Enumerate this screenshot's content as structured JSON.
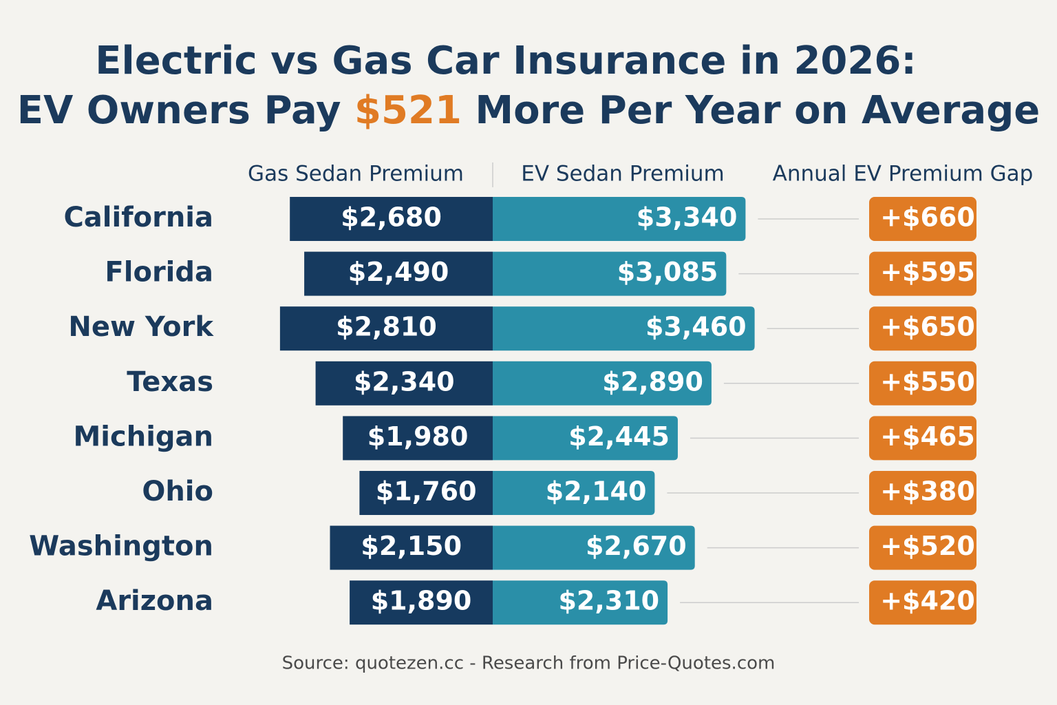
{
  "chart_data": {
    "type": "bar",
    "title": {
      "line1": "Electric vs Gas Car Insurance in 2026:",
      "line2_start": "EV Owners Pay ",
      "highlight": "$521",
      "line2_end": " More Per Year on Average"
    },
    "categories": [
      "California",
      "Florida",
      "New York",
      "Texas",
      "Michigan",
      "Ohio",
      "Washington",
      "Arizona"
    ],
    "series": [
      {
        "name": "Gas Sedan Premium",
        "color": "#163a5f",
        "values": [
          2680,
          2490,
          2810,
          2340,
          1980,
          1760,
          2150,
          1890
        ],
        "value_labels": [
          "$2,680",
          "$2,490",
          "$2,810",
          "$2,340",
          "$1,980",
          "$1,760",
          "$2,150",
          "$1,890"
        ]
      },
      {
        "name": "EV Sedan Premium",
        "color": "#2a8fa8",
        "values": [
          3340,
          3085,
          3460,
          2890,
          2445,
          2140,
          2670,
          2310
        ],
        "value_labels": [
          "$3,340",
          "$3,085",
          "$3,460",
          "$2,890",
          "$2,445",
          "$2,140",
          "$2,670",
          "$2,310"
        ]
      },
      {
        "name": "Annual EV Premium Gap",
        "color": "#e07b24",
        "values": [
          660,
          595,
          650,
          550,
          465,
          380,
          520,
          420
        ],
        "value_labels": [
          "+$660",
          "+$595",
          "+$650",
          "+$550",
          "+$465",
          "+$380",
          "+$520",
          "+$420"
        ]
      }
    ],
    "source": "Source: quotezen.cc - Research from Price-Quotes.com"
  }
}
